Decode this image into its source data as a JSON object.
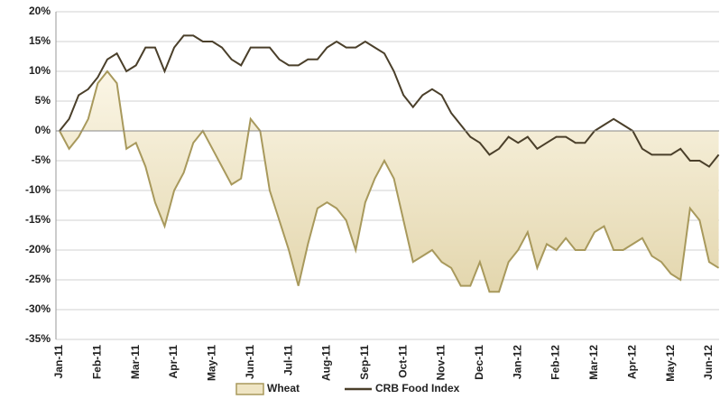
{
  "chart_data": {
    "type": "line",
    "categories": [
      "Jan-11",
      null,
      null,
      null,
      "Feb-11",
      null,
      null,
      null,
      "Mar-11",
      null,
      null,
      null,
      "Apr-11",
      null,
      null,
      null,
      "May-11",
      null,
      null,
      null,
      "Jun-11",
      null,
      null,
      null,
      "Jul-11",
      null,
      null,
      null,
      "Aug-11",
      null,
      null,
      null,
      "Sep-11",
      null,
      null,
      null,
      "Oct-11",
      null,
      null,
      null,
      "Nov-11",
      null,
      null,
      null,
      "Dec-11",
      null,
      null,
      null,
      "Jan-12",
      null,
      null,
      null,
      "Feb-12",
      null,
      null,
      null,
      "Mar-12",
      null,
      null,
      null,
      "Apr-12",
      null,
      null,
      null,
      "May-12",
      null,
      null,
      null,
      "Jun-12",
      null
    ],
    "series": [
      {
        "name": "Wheat",
        "type": "area",
        "color": "#a8995c",
        "fill": "#efe5c4",
        "values": [
          0,
          -3,
          -1,
          2,
          8,
          10,
          8,
          -3,
          -2,
          -6,
          -12,
          -16,
          -10,
          -7,
          -2,
          0,
          -3,
          -6,
          -9,
          -8,
          2,
          0,
          -10,
          -15,
          -20,
          -26,
          -19,
          -13,
          -12,
          -13,
          -15,
          -20,
          -12,
          -8,
          -5,
          -8,
          -15,
          -22,
          -21,
          -20,
          -22,
          -23,
          -26,
          -26,
          -22,
          -27,
          -27,
          -22,
          -20,
          -17,
          -23,
          -19,
          -20,
          -18,
          -20,
          -20,
          -17,
          -16,
          -20,
          -20,
          -19,
          -18,
          -21,
          -22,
          -24,
          -25,
          -13,
          -15,
          -22,
          -23
        ]
      },
      {
        "name": "CRB Food Index",
        "type": "line",
        "color": "#4a3f2a",
        "values": [
          0,
          2,
          6,
          7,
          9,
          12,
          13,
          10,
          11,
          14,
          14,
          10,
          14,
          16,
          16,
          15,
          15,
          14,
          12,
          11,
          14,
          14,
          14,
          12,
          11,
          11,
          12,
          12,
          14,
          15,
          14,
          14,
          15,
          14,
          13,
          10,
          6,
          4,
          6,
          7,
          6,
          3,
          1,
          -1,
          -2,
          -4,
          -3,
          -1,
          -2,
          -1,
          -3,
          -2,
          -1,
          -1,
          -2,
          -2,
          0,
          1,
          2,
          1,
          0,
          -3,
          -4,
          -4,
          -4,
          -3,
          -5,
          -5,
          -6,
          -4
        ]
      }
    ],
    "ylim": [
      -35,
      20
    ],
    "yticks": [
      {
        "value": -35,
        "label": "-35%"
      },
      {
        "value": -30,
        "label": "-30%"
      },
      {
        "value": -25,
        "label": "-25%"
      },
      {
        "value": -20,
        "label": "-20%"
      },
      {
        "value": -15,
        "label": "-15%"
      },
      {
        "value": -10,
        "label": "-10%"
      },
      {
        "value": -5,
        "label": "-5%"
      },
      {
        "value": 0,
        "label": "0%"
      },
      {
        "value": 5,
        "label": "5%"
      },
      {
        "value": 10,
        "label": "10%"
      },
      {
        "value": 15,
        "label": "15%"
      },
      {
        "value": 20,
        "label": "20%"
      }
    ],
    "grid": true,
    "legend": "bottom"
  }
}
